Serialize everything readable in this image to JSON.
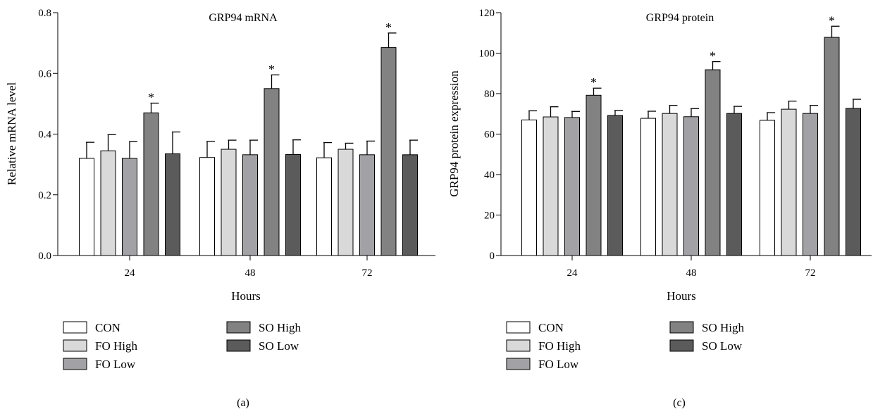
{
  "colors": {
    "CON": "#ffffff",
    "FO High": "#d9d9d9",
    "FO Low": "#a2a2a6",
    "SO High": "#828282",
    "SO Low": "#5b5b5b",
    "stroke": "#000000"
  },
  "chart_data": [
    {
      "panel_label": "(a)",
      "type": "bar",
      "title": "GRP94 mRNA",
      "xlabel": "Hours",
      "ylabel": "Relative mRNA level",
      "categories": [
        "24",
        "48",
        "72"
      ],
      "ylim": [
        0,
        0.8
      ],
      "yticks": [
        "0.0",
        "0.2",
        "0.4",
        "0.6",
        "0.8"
      ],
      "legend": {
        "placement": "bottom",
        "entries": [
          "CON",
          "FO High",
          "FO Low",
          "SO High",
          "SO Low"
        ]
      },
      "series": [
        {
          "name": "CON",
          "values": [
            0.32,
            0.323,
            0.322
          ],
          "errors": [
            0.053,
            0.053,
            0.05
          ]
        },
        {
          "name": "FO High",
          "values": [
            0.345,
            0.35,
            0.35
          ],
          "errors": [
            0.053,
            0.03,
            0.02
          ]
        },
        {
          "name": "FO Low",
          "values": [
            0.32,
            0.332,
            0.332
          ],
          "errors": [
            0.055,
            0.048,
            0.045
          ]
        },
        {
          "name": "SO High",
          "values": [
            0.47,
            0.55,
            0.685
          ],
          "errors": [
            0.032,
            0.045,
            0.048
          ],
          "significant": [
            true,
            true,
            true
          ]
        },
        {
          "name": "SO Low",
          "values": [
            0.335,
            0.333,
            0.332
          ],
          "errors": [
            0.072,
            0.048,
            0.048
          ]
        }
      ],
      "significance_marker": "*"
    },
    {
      "panel_label": "(c)",
      "type": "bar",
      "title": "GRP94 protein",
      "xlabel": "Hours",
      "ylabel": "GRP94 protein expression",
      "categories": [
        "24",
        "48",
        "72"
      ],
      "ylim": [
        0,
        120
      ],
      "yticks": [
        "0",
        "20",
        "40",
        "60",
        "80",
        "100",
        "120"
      ],
      "legend": {
        "placement": "bottom",
        "entries": [
          "CON",
          "FO High",
          "FO Low",
          "SO High",
          "SO Low"
        ]
      },
      "series": [
        {
          "name": "CON",
          "values": [
            67,
            67.8,
            66.8
          ],
          "errors": [
            4.5,
            3.5,
            3.8
          ]
        },
        {
          "name": "FO High",
          "values": [
            68.5,
            70.2,
            72.3
          ],
          "errors": [
            5,
            4,
            4
          ]
        },
        {
          "name": "FO Low",
          "values": [
            68.2,
            68.6,
            70.2
          ],
          "errors": [
            3,
            4,
            4
          ]
        },
        {
          "name": "SO High",
          "values": [
            79.2,
            91.8,
            107.8
          ],
          "errors": [
            3.5,
            4,
            5.5
          ],
          "significant": [
            true,
            true,
            true
          ]
        },
        {
          "name": "SO Low",
          "values": [
            69.2,
            70.2,
            72.7
          ],
          "errors": [
            2.5,
            3.5,
            4.5
          ]
        }
      ],
      "significance_marker": "*"
    }
  ]
}
